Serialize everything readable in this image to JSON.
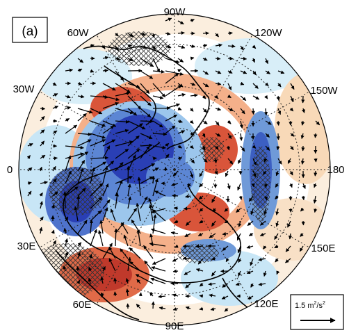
{
  "panel_label": "(a)",
  "projection": "north-polar-stereographic",
  "longitude_labels": {
    "90W": "90W",
    "120W": "120W",
    "150W": "150W",
    "180": "180",
    "150E": "150E",
    "120E": "120E",
    "90E": "90E",
    "60E": "60E",
    "30E": "30E",
    "0": "0",
    "30W": "30W",
    "60W": "60W"
  },
  "reference_vector": {
    "value_text": "1.5 m",
    "superscript": "2",
    "sep": "/s",
    "superscript2": "2"
  },
  "colors": {
    "positive_strong": "#c0392b",
    "positive_mid": "#e8825a",
    "positive_weak": "#fbe3c8",
    "negative_strong": "#2a3fb5",
    "negative_mid": "#5c86d4",
    "negative_weak": "#bfe3f5",
    "coast": "#000000",
    "grid": "#222222"
  },
  "icons": [
    "reference-arrow-icon",
    "wave-flux-arrow-icon",
    "significance-hatch-icon"
  ]
}
